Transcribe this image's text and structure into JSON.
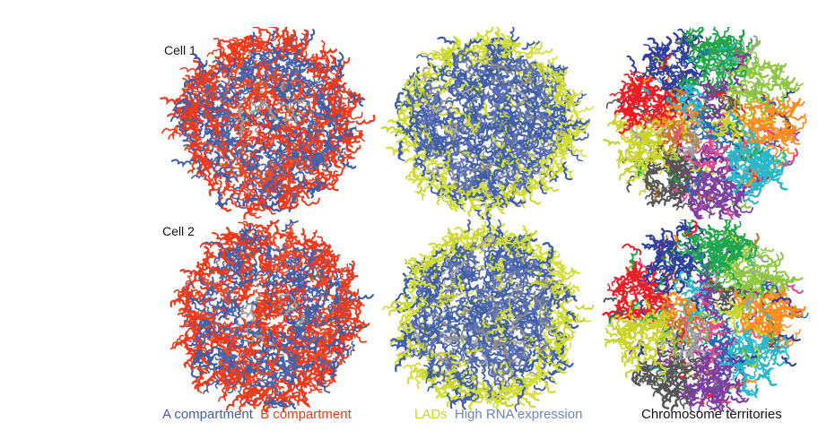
{
  "figure": {
    "rows": [
      {
        "label": "Cell 1"
      },
      {
        "label": "Cell 2"
      }
    ],
    "columns": [
      {
        "id": "compartments",
        "legend": [
          {
            "text": "A compartment",
            "color": "#3f5ea6"
          },
          {
            "text": "B compartment",
            "color": "#ee3a1c"
          }
        ]
      },
      {
        "id": "lads",
        "legend": [
          {
            "text": "LADs",
            "color": "#c9d62b"
          },
          {
            "text": "High RNA expression",
            "color": "#6b87bd"
          }
        ]
      },
      {
        "id": "territories",
        "legend": [
          {
            "text": "Chromosome territories",
            "color": "#111111"
          }
        ]
      }
    ],
    "palettes": {
      "compartments": [
        "#ee3a1c",
        "#ee3a1c",
        "#f04a22",
        "#3f5ea6",
        "#4b66ad",
        "#9a9a9a"
      ],
      "lads": [
        "#c9d62b",
        "#d5df3a",
        "#3f5ea6",
        "#5a70b2",
        "#8d8d8d",
        "#a8a8a8"
      ],
      "territories": [
        "#ee1c24",
        "#2f3f9e",
        "#1fa64a",
        "#8dc63f",
        "#ff8a1d",
        "#2ab7c9",
        "#7b3fa1",
        "#555555",
        "#c8d42a",
        "#1f6fb4",
        "#e34a8d",
        "#9aa0a6",
        "#c47a2c"
      ]
    }
  }
}
